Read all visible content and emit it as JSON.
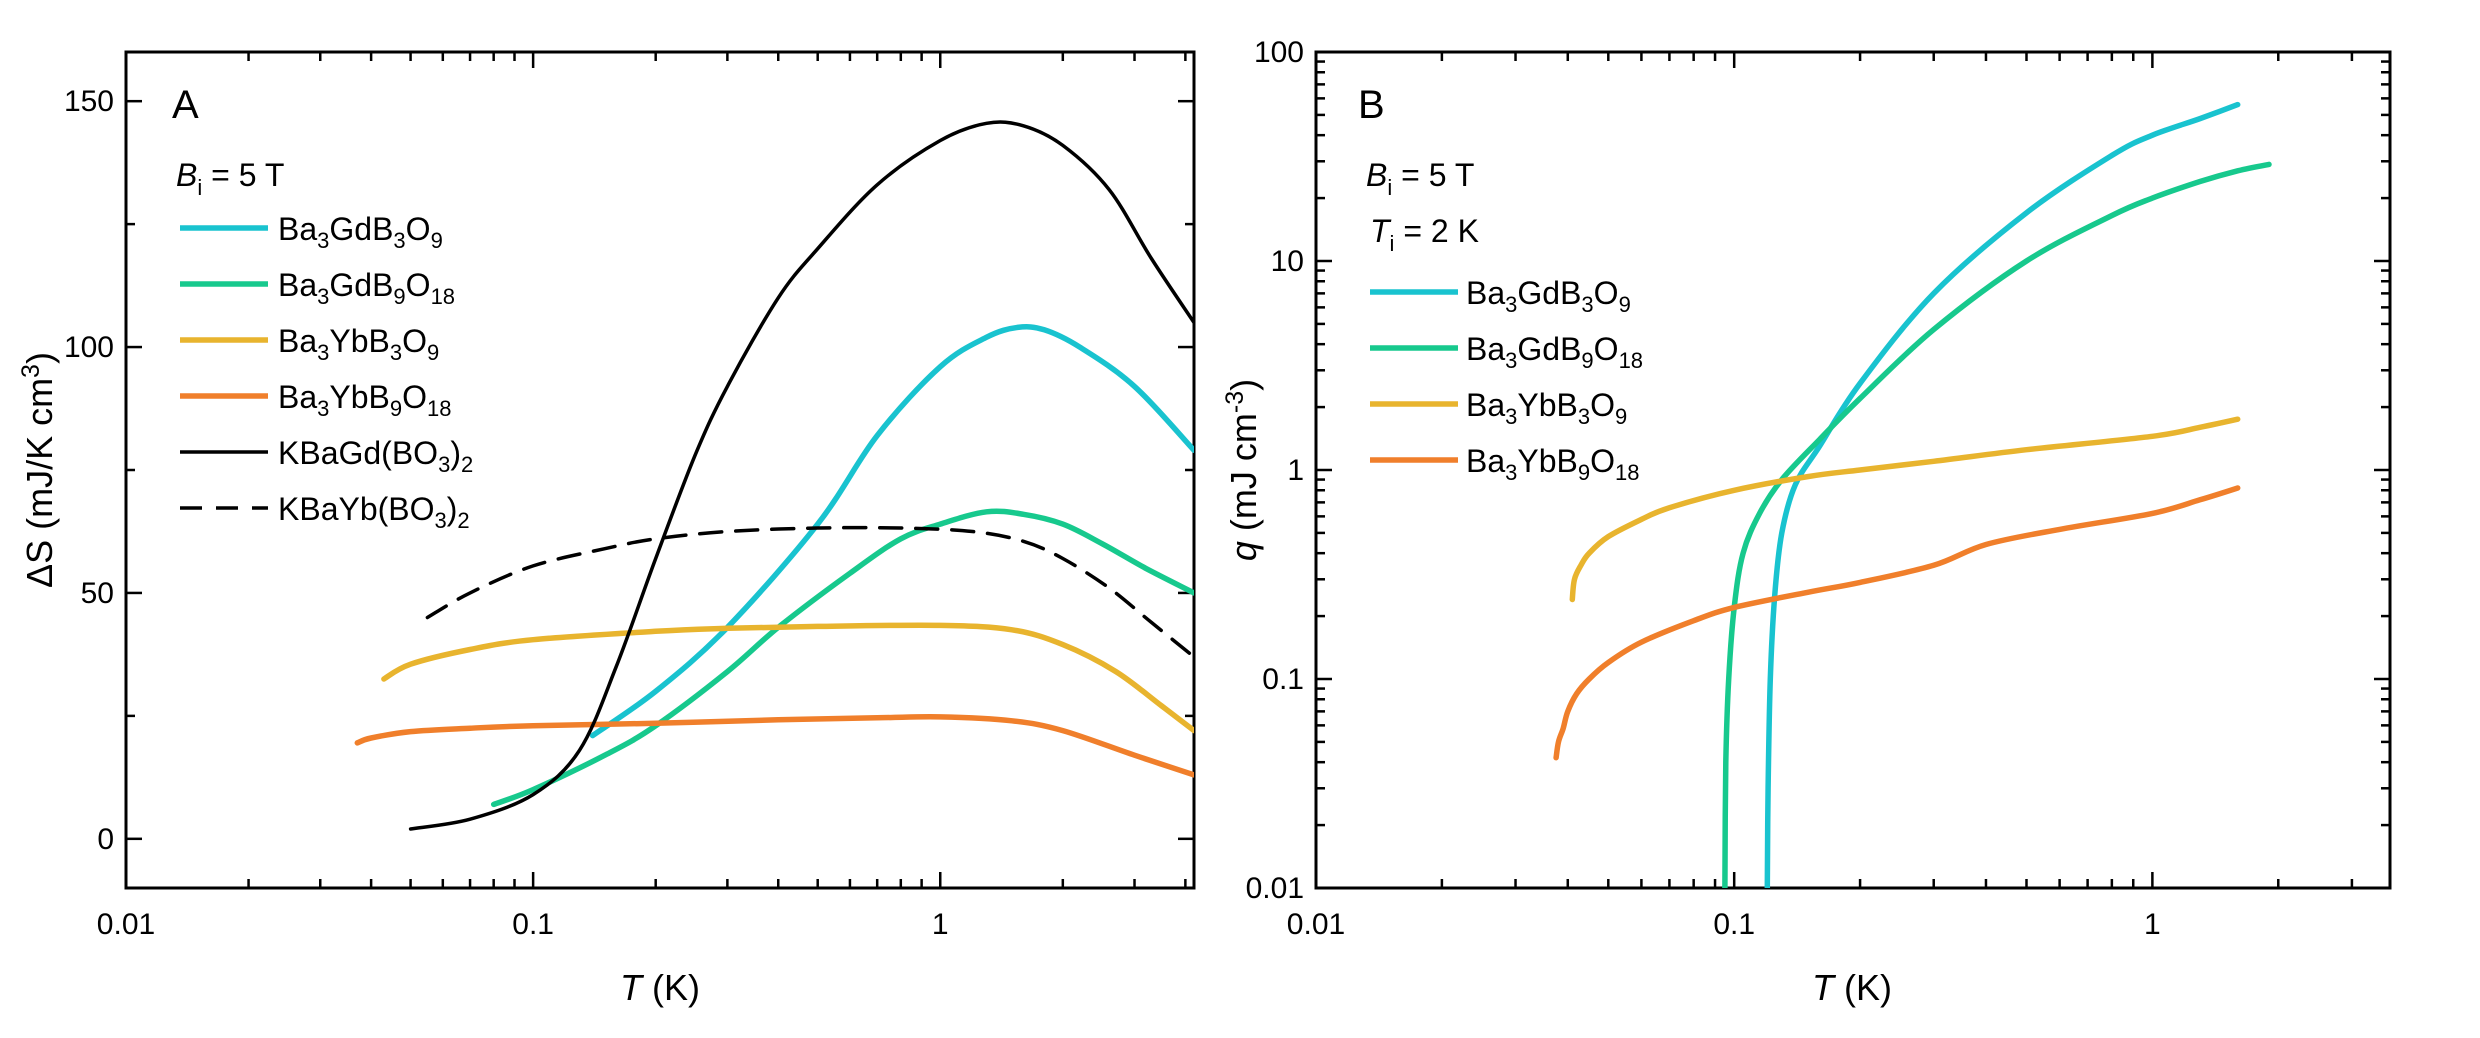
{
  "chart_data": [
    {
      "type": "line",
      "panel": "A",
      "xscale": "log",
      "xlim": [
        0.01,
        4.2
      ],
      "ylim": [
        -10,
        160
      ],
      "xlabel": "T (K)",
      "ylabel": "ΔS (mJ/K cm³)",
      "xticks": [
        "0.01",
        "0.1",
        "1"
      ],
      "yticks": [
        "0",
        "50",
        "100",
        "150"
      ],
      "annotation": "Bᵢ = 5 T",
      "legend_position": "top-left",
      "series": [
        {
          "name": "Ba₃GdB₃O₉",
          "color": "#19c3cf",
          "width": 5.5,
          "dash": "",
          "x": [
            0.14,
            0.2,
            0.3,
            0.5,
            0.7,
            1.0,
            1.3,
            1.55,
            1.8,
            2.2,
            3.0,
            4.2
          ],
          "y": [
            21,
            30,
            43,
            64,
            82,
            96,
            102,
            104,
            103.5,
            100,
            92,
            79
          ]
        },
        {
          "name": "Ba₃GdB₉O₁₈",
          "color": "#17c98d",
          "width": 5.5,
          "dash": "",
          "x": [
            0.08,
            0.1,
            0.15,
            0.2,
            0.3,
            0.4,
            0.6,
            0.8,
            1.0,
            1.3,
            1.6,
            2.0,
            2.5,
            3.2,
            4.2
          ],
          "y": [
            7,
            10,
            17,
            23,
            34,
            43,
            54,
            61,
            64,
            66.5,
            66,
            64,
            60,
            55,
            50
          ]
        },
        {
          "name": "Ba₃YbB₃O₉",
          "color": "#e8b42e",
          "width": 5.5,
          "dash": "",
          "x": [
            0.043,
            0.05,
            0.07,
            0.1,
            0.2,
            0.3,
            0.5,
            1.0,
            1.5,
            2.0,
            2.7,
            3.5,
            4.2
          ],
          "y": [
            32.5,
            35.5,
            38.5,
            40.5,
            42.2,
            42.8,
            43.2,
            43.4,
            42.5,
            39.5,
            34,
            27,
            22
          ]
        },
        {
          "name": "Ba₃YbB₉O₁₈",
          "color": "#f07f2b",
          "width": 5.5,
          "dash": "",
          "x": [
            0.037,
            0.04,
            0.05,
            0.07,
            0.1,
            0.2,
            0.4,
            0.7,
            1.0,
            1.5,
            2.0,
            3.0,
            4.2
          ],
          "y": [
            19.5,
            20.5,
            21.8,
            22.5,
            23,
            23.5,
            24.2,
            24.6,
            24.8,
            24,
            22,
            17,
            13
          ]
        },
        {
          "name": "KBaGd(BO₃)₂",
          "color": "#000000",
          "width": 3.5,
          "dash": "",
          "x": [
            0.05,
            0.07,
            0.1,
            0.13,
            0.16,
            0.2,
            0.25,
            0.3,
            0.4,
            0.5,
            0.7,
            1.0,
            1.3,
            1.6,
            2.0,
            2.6,
            3.3,
            4.2
          ],
          "y": [
            2,
            4,
            9,
            18,
            35,
            57,
            78,
            92,
            110,
            120,
            133,
            142,
            145.5,
            145,
            141,
            132,
            118,
            105
          ]
        },
        {
          "name": "KBaYb(BO₃)₂",
          "color": "#000000",
          "width": 3.5,
          "dash": "22 14",
          "x": [
            0.055,
            0.07,
            0.1,
            0.15,
            0.2,
            0.3,
            0.5,
            0.8,
            1.2,
            1.6,
            2.0,
            2.6,
            3.3,
            4.2
          ],
          "y": [
            45,
            50,
            55.5,
            59,
            61,
            62.5,
            63.2,
            63.2,
            62.5,
            60.5,
            57,
            51,
            44,
            37
          ]
        }
      ]
    },
    {
      "type": "line",
      "panel": "B",
      "xscale": "log",
      "yscale": "log",
      "xlim": [
        0.01,
        3.7
      ],
      "ylim": [
        0.01,
        100
      ],
      "xlabel": "T (K)",
      "ylabel": "q (mJ cm⁻³)",
      "xticks": [
        "0.01",
        "0.1",
        "1"
      ],
      "yticks": [
        "0.01",
        "0.1",
        "1",
        "10",
        "100"
      ],
      "annotations": [
        "Bᵢ = 5 T",
        "Tᵢ = 2 K"
      ],
      "legend_position": "top-left",
      "series": [
        {
          "name": "Ba₃GdB₃O₉",
          "color": "#19c3cf",
          "width": 5.5,
          "x": [
            0.12,
            0.1205,
            0.122,
            0.125,
            0.13,
            0.14,
            0.16,
            0.2,
            0.3,
            0.5,
            0.8,
            1.0,
            1.3,
            1.6
          ],
          "y": [
            0.01,
            0.03,
            0.1,
            0.25,
            0.5,
            0.85,
            1.3,
            2.6,
            7,
            17,
            32,
            40,
            48,
            56
          ]
        },
        {
          "name": "Ba₃GdB₉O₁₈",
          "color": "#17c98d",
          "width": 5.5,
          "x": [
            0.095,
            0.0955,
            0.097,
            0.1,
            0.105,
            0.115,
            0.13,
            0.16,
            0.2,
            0.3,
            0.5,
            0.8,
            1.0,
            1.3,
            1.6,
            1.9
          ],
          "y": [
            0.01,
            0.04,
            0.1,
            0.22,
            0.4,
            0.62,
            0.9,
            1.4,
            2.2,
            4.7,
            10,
            16.5,
            20,
            24,
            27,
            29
          ]
        },
        {
          "name": "Ba₃YbB₃O₉",
          "color": "#e8b42e",
          "width": 5.5,
          "x": [
            0.041,
            0.0415,
            0.043,
            0.045,
            0.05,
            0.06,
            0.07,
            0.1,
            0.15,
            0.2,
            0.3,
            0.5,
            1.0,
            1.3,
            1.6
          ],
          "y": [
            0.24,
            0.3,
            0.35,
            0.4,
            0.48,
            0.58,
            0.66,
            0.8,
            0.93,
            1.0,
            1.1,
            1.25,
            1.45,
            1.6,
            1.75
          ]
        },
        {
          "name": "Ba₃YbB₉O₁₈",
          "color": "#f07f2b",
          "width": 5.5,
          "x": [
            0.0375,
            0.038,
            0.039,
            0.04,
            0.042,
            0.045,
            0.05,
            0.06,
            0.08,
            0.1,
            0.15,
            0.2,
            0.3,
            0.4,
            0.6,
            1.0,
            1.3,
            1.6
          ],
          "y": [
            0.042,
            0.05,
            0.058,
            0.07,
            0.085,
            0.1,
            0.12,
            0.15,
            0.19,
            0.22,
            0.26,
            0.29,
            0.35,
            0.44,
            0.52,
            0.62,
            0.72,
            0.82
          ]
        }
      ]
    }
  ],
  "panels": {
    "a": {
      "letter": "A",
      "ylabel_main": "ΔS (mJ/K cm",
      "ylabel_sup": "3",
      "ylabel_close": ")",
      "xlabel_var": "T",
      "xlabel_unit": " (K)",
      "field_var": "B",
      "field_sub": "i",
      "field_value": " = 5 T"
    },
    "b": {
      "letter": "B",
      "ylabel_var": "q",
      "ylabel_main": " (mJ cm",
      "ylabel_sup": "-3",
      "ylabel_close": ")",
      "xlabel_var": "T",
      "xlabel_unit": " (K)",
      "field_var": "B",
      "field_sub": "i",
      "field_value": " = 5 T",
      "temp_var": "T",
      "temp_sub": "i",
      "temp_value": " = 2 K"
    }
  }
}
